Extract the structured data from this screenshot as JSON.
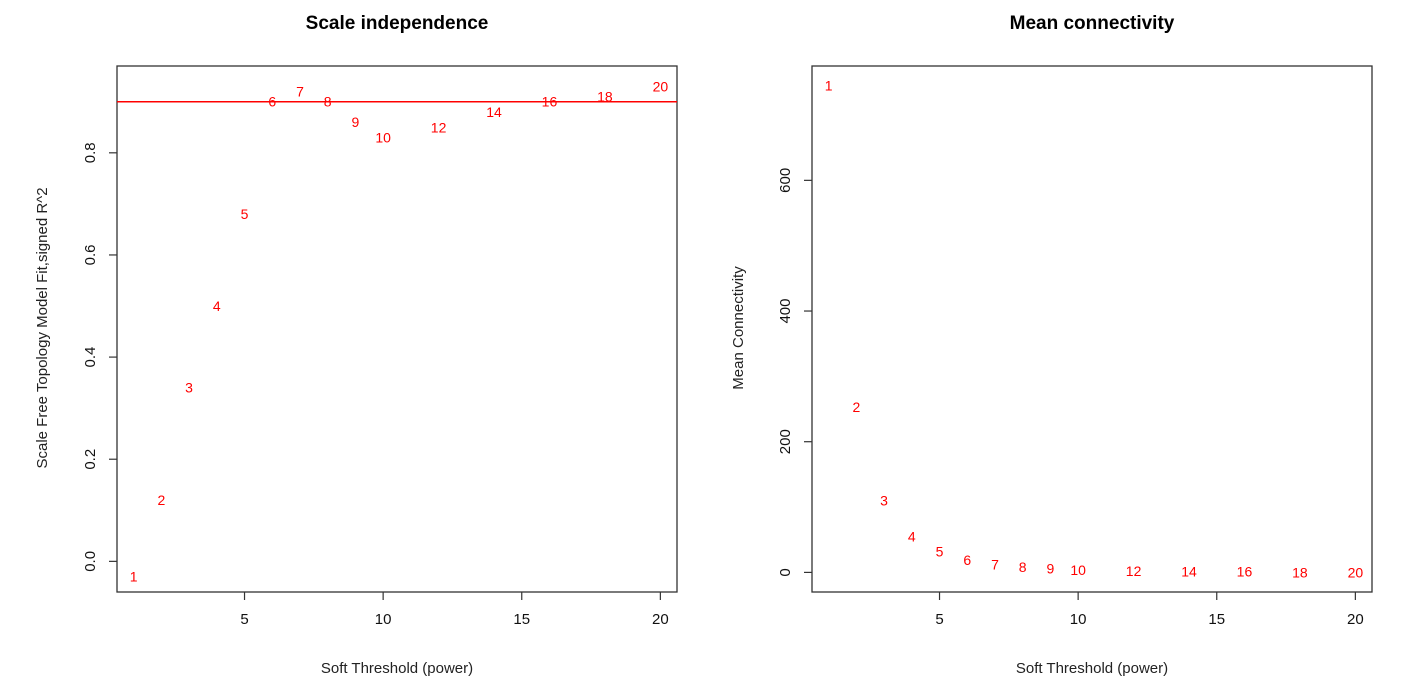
{
  "chart_data": [
    {
      "type": "scatter",
      "title": "Scale independence",
      "xlabel": "Soft Threshold (power)",
      "ylabel": "Scale Free Topology Model Fit,signed R^2",
      "xlim": [
        0.4,
        20.6
      ],
      "ylim": [
        -0.06,
        0.97
      ],
      "xticks": [
        5,
        10,
        15,
        20
      ],
      "yticks": [
        0.0,
        0.2,
        0.4,
        0.6,
        0.8
      ],
      "ytick_labels": [
        "0.0",
        "0.2",
        "0.4",
        "0.6",
        "0.8"
      ],
      "grid": false,
      "reference_line": {
        "y": 0.9,
        "color": "#ff0000"
      },
      "point_color": "#ff0000",
      "points": [
        {
          "label": "1",
          "x": 1,
          "y": -0.03
        },
        {
          "label": "2",
          "x": 2,
          "y": 0.12
        },
        {
          "label": "3",
          "x": 3,
          "y": 0.34
        },
        {
          "label": "4",
          "x": 4,
          "y": 0.5
        },
        {
          "label": "5",
          "x": 5,
          "y": 0.68
        },
        {
          "label": "6",
          "x": 6,
          "y": 0.9
        },
        {
          "label": "7",
          "x": 7,
          "y": 0.92
        },
        {
          "label": "8",
          "x": 8,
          "y": 0.9
        },
        {
          "label": "9",
          "x": 9,
          "y": 0.86
        },
        {
          "label": "10",
          "x": 10,
          "y": 0.83
        },
        {
          "label": "12",
          "x": 12,
          "y": 0.85
        },
        {
          "label": "14",
          "x": 14,
          "y": 0.88
        },
        {
          "label": "16",
          "x": 16,
          "y": 0.9
        },
        {
          "label": "18",
          "x": 18,
          "y": 0.91
        },
        {
          "label": "20",
          "x": 20,
          "y": 0.93
        }
      ]
    },
    {
      "type": "scatter",
      "title": "Mean connectivity",
      "xlabel": "Soft Threshold (power)",
      "ylabel": "Mean Connectivity",
      "xlim": [
        0.4,
        20.6
      ],
      "ylim": [
        -30,
        775
      ],
      "xticks": [
        5,
        10,
        15,
        20
      ],
      "yticks": [
        0,
        200,
        400,
        600
      ],
      "ytick_labels": [
        "0",
        "200",
        "400",
        "600"
      ],
      "grid": false,
      "point_color": "#ff0000",
      "points": [
        {
          "label": "1",
          "x": 1,
          "y": 745
        },
        {
          "label": "2",
          "x": 2,
          "y": 253
        },
        {
          "label": "3",
          "x": 3,
          "y": 110
        },
        {
          "label": "4",
          "x": 4,
          "y": 55
        },
        {
          "label": "5",
          "x": 5,
          "y": 32
        },
        {
          "label": "6",
          "x": 6,
          "y": 19
        },
        {
          "label": "7",
          "x": 7,
          "y": 12
        },
        {
          "label": "8",
          "x": 8,
          "y": 8
        },
        {
          "label": "9",
          "x": 9,
          "y": 6
        },
        {
          "label": "10",
          "x": 10,
          "y": 4
        },
        {
          "label": "12",
          "x": 12,
          "y": 2
        },
        {
          "label": "14",
          "x": 14,
          "y": 1
        },
        {
          "label": "16",
          "x": 16,
          "y": 1
        },
        {
          "label": "18",
          "x": 18,
          "y": 0
        },
        {
          "label": "20",
          "x": 20,
          "y": 0
        }
      ]
    }
  ]
}
